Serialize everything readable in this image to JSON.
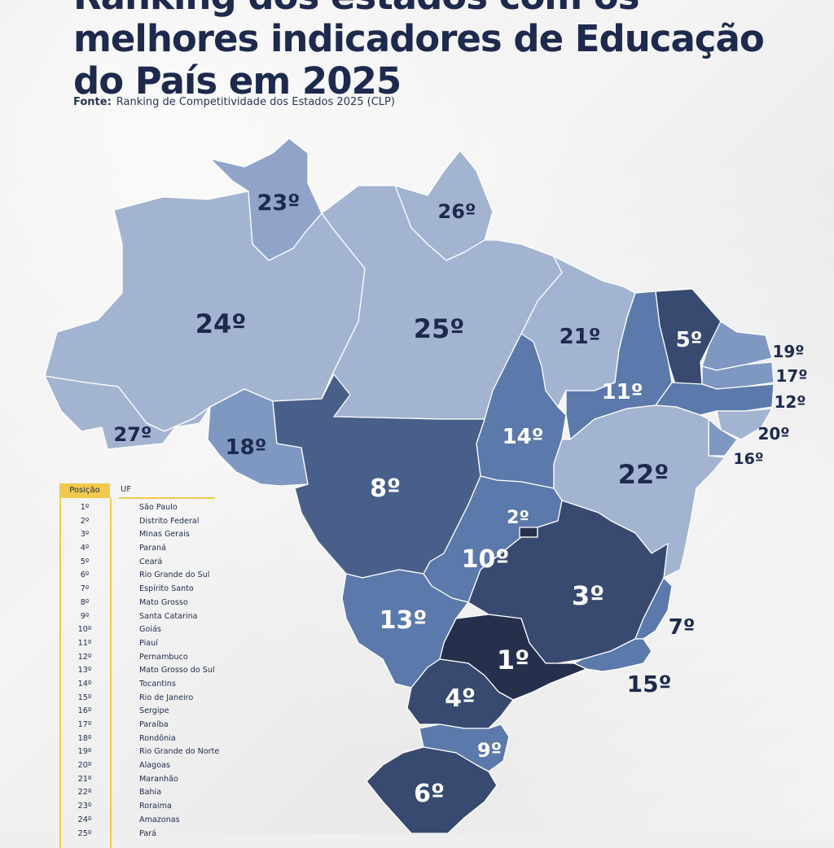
{
  "title": {
    "line1": "Ranking dos estados com os",
    "line2": "melhores indicadores de Educação",
    "line3": "do País em 2025"
  },
  "source": {
    "label": "Fonte:",
    "text": "Ranking de Competitividade dos Estados 2025 (CLP)"
  },
  "map_labels": {
    "rr": "23º",
    "ap": "26º",
    "am": "24º",
    "pa": "25º",
    "ma": "21º",
    "ce": "5º",
    "pi": "11º",
    "to": "14º",
    "ac": "27º",
    "ro": "18º",
    "mt": "8º",
    "ba": "22º",
    "df": "2º",
    "go": "10º",
    "mg": "3º",
    "ms": "13º",
    "sp": "1º",
    "pr": "4º",
    "sc": "9º",
    "rs": "6º",
    "es": "7º",
    "rj": "15º",
    "rn": "19º",
    "pb": "17º",
    "pe": "12º",
    "al": "20º",
    "se": "16º"
  },
  "colors": {
    "title": "#1d2a4d",
    "accent_yellow": "#f2c94c",
    "tier_darkest": "#26304d",
    "tier_dark": "#384a70",
    "tier_mid_dark": "#485f8a",
    "tier_mid": "#5b79aa",
    "tier_light": "#7f98c2",
    "tier_lightest": "#a3b4d1"
  },
  "legend": {
    "position_header": "Posição",
    "uf_header": "UF",
    "rows": [
      {
        "pos": "1º",
        "uf": "São Paulo"
      },
      {
        "pos": "2º",
        "uf": "Distrito Federal"
      },
      {
        "pos": "3º",
        "uf": "Minas Gerais"
      },
      {
        "pos": "4º",
        "uf": "Paraná"
      },
      {
        "pos": "5º",
        "uf": "Ceará"
      },
      {
        "pos": "6º",
        "uf": "Rio Grande do Sul"
      },
      {
        "pos": "7º",
        "uf": "Espírito Santo"
      },
      {
        "pos": "8º",
        "uf": "Mato Grosso"
      },
      {
        "pos": "9º",
        "uf": "Santa Catarina"
      },
      {
        "pos": "10º",
        "uf": "Goiás"
      },
      {
        "pos": "11º",
        "uf": "Piauí"
      },
      {
        "pos": "12º",
        "uf": "Pernambuco"
      },
      {
        "pos": "13º",
        "uf": "Mato Grosso do Sul"
      },
      {
        "pos": "14º",
        "uf": "Tocantins"
      },
      {
        "pos": "15º",
        "uf": "Rio de Janeiro"
      },
      {
        "pos": "16º",
        "uf": "Sergipe"
      },
      {
        "pos": "17º",
        "uf": "Paraíba"
      },
      {
        "pos": "18º",
        "uf": "Rondônia"
      },
      {
        "pos": "19º",
        "uf": "Rio Grande do Norte"
      },
      {
        "pos": "20º",
        "uf": "Alagoas"
      },
      {
        "pos": "21º",
        "uf": "Maranhão"
      },
      {
        "pos": "22º",
        "uf": "Bahia"
      },
      {
        "pos": "23º",
        "uf": "Roraima"
      },
      {
        "pos": "24º",
        "uf": "Amazonas"
      },
      {
        "pos": "25º",
        "uf": "Pará"
      }
    ]
  }
}
